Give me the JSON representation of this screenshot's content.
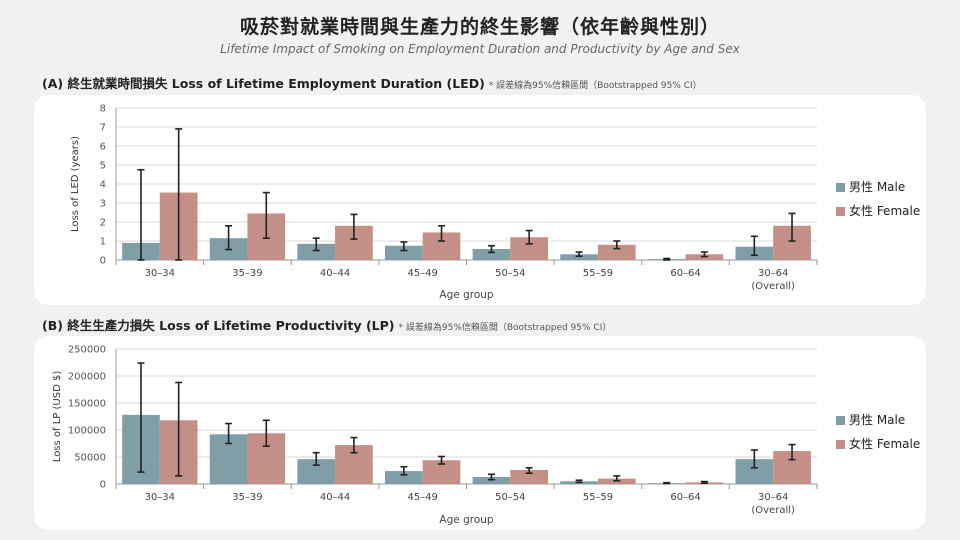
{
  "title": "吸菸對就業時間與生產力的終生影響（依年齡與性別）",
  "subtitle": "Lifetime Impact of Smoking on Employment Duration and Productivity by Age and Sex",
  "colors": {
    "male": "#7f9ea8",
    "female": "#c48f86",
    "error_bar": "#222222",
    "background": "#f3f1ef",
    "card": "#ffffff"
  },
  "panels": [
    {
      "label": "(A) 終生就業時間損失 Loss of Lifetime Employment Duration (LED)",
      "note": "* 誤差線為95%信賴區間（Bootstrapped 95% CI）"
    },
    {
      "label": "(B) 終生生產力損失 Loss of Lifetime Productivity (LP)",
      "note": "* 誤差線為95%信賴區間（Bootstrapped 95% CI）"
    }
  ],
  "chart_data": [
    {
      "type": "bar",
      "categories": [
        "30–34",
        "35–39",
        "40–44",
        "45–49",
        "50–54",
        "55–59",
        "60–64",
        "30–64 (Overall)"
      ],
      "xlabel": "Age group",
      "ylabel": "Loss of LED (years)",
      "ylim": [
        0,
        8
      ],
      "yticks": [
        0,
        1,
        2,
        3,
        4,
        5,
        6,
        7,
        8
      ],
      "grid": true,
      "legend_position": "right",
      "series": [
        {
          "name": "男性 Male",
          "values": [
            0.9,
            1.15,
            0.85,
            0.75,
            0.58,
            0.3,
            0.05,
            0.7
          ],
          "ci_low": [
            0,
            0.55,
            0.5,
            0.5,
            0.4,
            0.2,
            0.0,
            0.25
          ],
          "ci_high": [
            4.75,
            1.8,
            1.15,
            0.95,
            0.75,
            0.42,
            0.08,
            1.25
          ]
        },
        {
          "name": "女性 Female",
          "values": [
            3.55,
            2.45,
            1.8,
            1.45,
            1.2,
            0.8,
            0.3,
            1.8
          ],
          "ci_low": [
            0,
            1.15,
            1.1,
            1.0,
            0.85,
            0.6,
            0.18,
            1.0
          ],
          "ci_high": [
            6.9,
            3.55,
            2.4,
            1.8,
            1.55,
            1.0,
            0.42,
            2.45
          ]
        }
      ]
    },
    {
      "type": "bar",
      "categories": [
        "30–34",
        "35–39",
        "40–44",
        "45–49",
        "50–54",
        "55–59",
        "60–64",
        "30–64 (Overall)"
      ],
      "xlabel": "Age group",
      "ylabel": "Loss of LP (USD $)",
      "ylim": [
        0,
        250000
      ],
      "yticks": [
        0,
        50000,
        100000,
        150000,
        200000,
        250000
      ],
      "grid": true,
      "legend_position": "right",
      "series": [
        {
          "name": "男性 Male",
          "values": [
            128000,
            92000,
            46000,
            24000,
            13000,
            5000,
            1500,
            46000
          ],
          "ci_low": [
            22000,
            75000,
            35000,
            17000,
            8000,
            3000,
            800,
            30000
          ],
          "ci_high": [
            224000,
            112000,
            58000,
            32000,
            18000,
            7000,
            2500,
            63000
          ]
        },
        {
          "name": "女性 Female",
          "values": [
            118000,
            94000,
            72000,
            44000,
            26000,
            10000,
            3000,
            61000
          ],
          "ci_low": [
            15000,
            70000,
            58000,
            37000,
            20000,
            6000,
            1500,
            45000
          ],
          "ci_high": [
            188000,
            118000,
            86000,
            51000,
            30000,
            15000,
            4500,
            73000
          ]
        }
      ]
    }
  ]
}
